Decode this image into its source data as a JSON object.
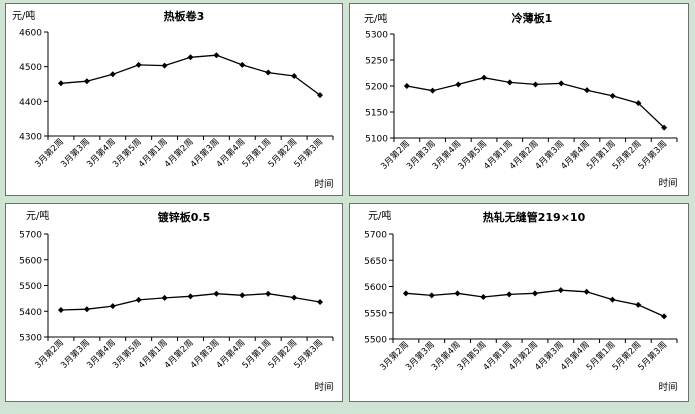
{
  "chart_data": [
    {
      "type": "line",
      "title": "热板卷3",
      "ylabel": "元/吨",
      "xlabel": "时间",
      "categories": [
        "3月第2周",
        "3月第3周",
        "3月第4周",
        "3月第5周",
        "4月第1周",
        "4月第2周",
        "4月第3周",
        "4月第4周",
        "5月第1周",
        "5月第2周",
        "5月第3周"
      ],
      "values": [
        4452,
        4458,
        4478,
        4505,
        4503,
        4527,
        4533,
        4505,
        4483,
        4473,
        4418
      ],
      "ylim": [
        4300,
        4600
      ],
      "yticks": [
        "4300",
        "4400",
        "4500",
        "4600"
      ],
      "grid": false
    },
    {
      "type": "line",
      "title": "冷薄板1",
      "ylabel": "元/吨",
      "xlabel": "时间",
      "categories": [
        "3月第2周",
        "3月第3周",
        "3月第4周",
        "3月第5周",
        "4月第1周",
        "4月第2周",
        "4月第3周",
        "4月第4周",
        "5月第1周",
        "5月第2周",
        "5月第3周"
      ],
      "values": [
        5200,
        5191,
        5203,
        5216,
        5207,
        5203,
        5205,
        5192,
        5181,
        5167,
        5120
      ],
      "ylim": [
        5100,
        5300
      ],
      "yticks": [
        "5100",
        "5150",
        "5200",
        "5250",
        "5300"
      ],
      "grid": false
    },
    {
      "type": "line",
      "title": "镀锌板0.5",
      "ylabel": "元/吨",
      "xlabel": "时间",
      "categories": [
        "3月第2周",
        "3月第3周",
        "3月第4周",
        "3月第5周",
        "4月第1周",
        "4月第2周",
        "4月第3周",
        "4月第4周",
        "5月第1周",
        "5月第2周",
        "5月第3周"
      ],
      "values": [
        5405,
        5408,
        5420,
        5444,
        5452,
        5458,
        5468,
        5462,
        5468,
        5453,
        5436
      ],
      "ylim": [
        5300,
        5700
      ],
      "yticks": [
        "5300",
        "5400",
        "5500",
        "5600",
        "5700"
      ],
      "grid": false
    },
    {
      "type": "line",
      "title": "热轧无缝管219×10",
      "ylabel": "元/吨",
      "xlabel": "时间",
      "categories": [
        "3月第2周",
        "3月第3周",
        "3月第4周",
        "3月第5周",
        "4月第1周",
        "4月第2周",
        "4月第3周",
        "4月第4周",
        "5月第1周",
        "5月第2周",
        "5月第3周"
      ],
      "values": [
        5587,
        5583,
        5587,
        5580,
        5585,
        5587,
        5593,
        5590,
        5575,
        5565,
        5543
      ],
      "ylim": [
        5500,
        5700
      ],
      "yticks": [
        "5500",
        "5550",
        "5600",
        "5650",
        "5700"
      ],
      "grid": false
    }
  ],
  "colors": {
    "line": "#000000",
    "marker": "#000000",
    "background": "#cfe4d3",
    "panel": "#ffffff"
  }
}
